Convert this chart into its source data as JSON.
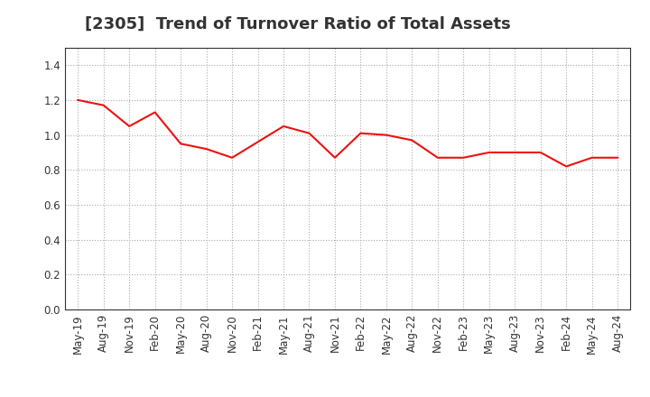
{
  "title": "[2305]  Trend of Turnover Ratio of Total Assets",
  "x_labels": [
    "May-19",
    "Aug-19",
    "Nov-19",
    "Feb-20",
    "May-20",
    "Aug-20",
    "Nov-20",
    "Feb-21",
    "May-21",
    "Aug-21",
    "Nov-21",
    "Feb-22",
    "May-22",
    "Aug-22",
    "Nov-22",
    "Feb-23",
    "May-23",
    "Aug-23",
    "Nov-23",
    "Feb-24",
    "May-24",
    "Aug-24"
  ],
  "y_values": [
    1.2,
    1.17,
    1.05,
    1.13,
    0.95,
    0.92,
    0.87,
    0.96,
    1.05,
    1.01,
    0.87,
    1.01,
    1.0,
    0.97,
    0.87,
    0.87,
    0.9,
    0.9,
    0.9,
    0.82,
    0.87,
    0.87
  ],
  "line_color": "#EE1111",
  "line_width": 1.5,
  "ylim": [
    0.0,
    1.5
  ],
  "yticks": [
    0.0,
    0.2,
    0.4,
    0.6,
    0.8,
    1.0,
    1.2,
    1.4
  ],
  "background_color": "#FFFFFF",
  "plot_bg_color": "#FFFFFF",
  "grid_color": "#AAAAAA",
  "title_fontsize": 13,
  "tick_fontsize": 8.5,
  "title_color": "#333333"
}
